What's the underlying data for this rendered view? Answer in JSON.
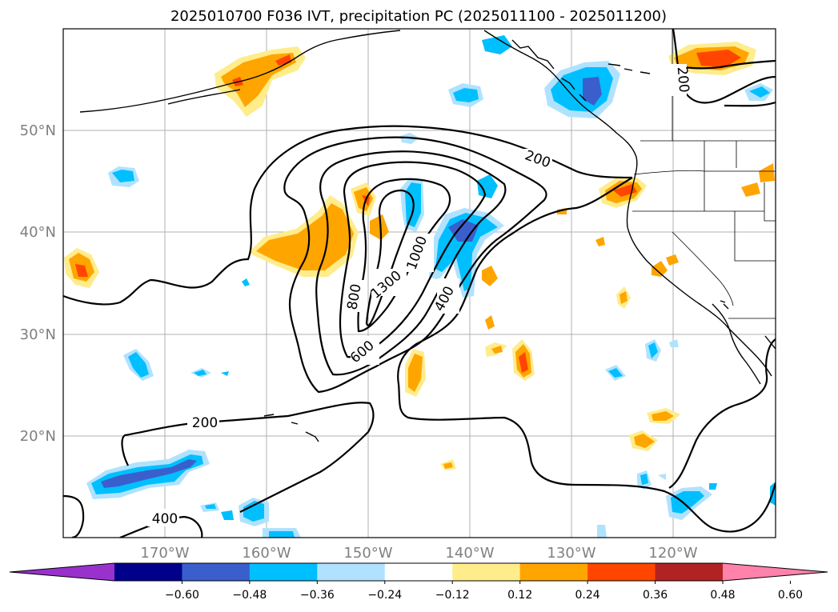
{
  "title": "2025010700 F036 IVT, precipitation PC (2025011100 - 2025011200)",
  "lat_labels": [
    "50°N",
    "40°N",
    "30°N",
    "20°N"
  ],
  "lon_labels": [
    "170°W",
    "160°W",
    "150°W",
    "140°W",
    "130°W",
    "120°W"
  ],
  "colorbar": {
    "ticks": [
      "−0.60",
      "−0.48",
      "−0.36",
      "−0.24",
      "−0.12",
      "0.12",
      "0.24",
      "0.36",
      "0.48",
      "0.60"
    ],
    "colors": [
      "#9932cc",
      "#00008b",
      "#3a5fcd",
      "#00bfff",
      "#b0e2ff",
      "#ffffff",
      "#ffec8b",
      "#ffa500",
      "#ff4500",
      "#b22222",
      "#ff82ab"
    ]
  },
  "contour_labels": [
    "200",
    "200",
    "200",
    "400",
    "400",
    "600",
    "800",
    "1000",
    "1300"
  ],
  "colors": {
    "neg_strong": "#3a5fcd",
    "neg": "#00bfff",
    "neg_light": "#b0e2ff",
    "pos_light": "#ffec8b",
    "pos": "#ffa500",
    "pos_strong": "#ff4500"
  }
}
